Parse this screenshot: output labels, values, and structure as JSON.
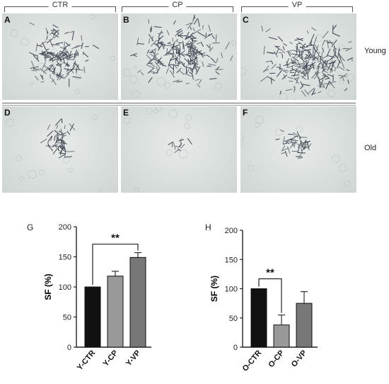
{
  "groups": [
    "CTR",
    "CP",
    "VP"
  ],
  "panels_top": [
    "A",
    "B",
    "C"
  ],
  "panels_bottom": [
    "D",
    "E",
    "F"
  ],
  "rows": {
    "young": "Young",
    "old": "Old"
  },
  "fig_labels": {
    "g": "G",
    "h": "H"
  },
  "chart_data": [
    {
      "type": "bar",
      "categories": [
        "Y-CTR",
        "Y-CP",
        "Y-VP"
      ],
      "values": [
        100,
        118,
        149
      ],
      "errors": [
        0,
        8,
        8
      ],
      "colors": [
        "#111111",
        "#999999",
        "#777777"
      ],
      "ylabel": "SF (%)",
      "ylim": [
        0,
        200
      ],
      "yticks": [
        0,
        50,
        100,
        150,
        200
      ],
      "annotation": {
        "text": "**",
        "from": "Y-CTR",
        "to": "Y-VP"
      }
    },
    {
      "type": "bar",
      "categories": [
        "O-CTR",
        "O-CP",
        "O-VP"
      ],
      "values": [
        100,
        38,
        75
      ],
      "errors": [
        0,
        17,
        20
      ],
      "colors": [
        "#111111",
        "#999999",
        "#777777"
      ],
      "ylabel": "SF (%)",
      "ylim": [
        0,
        200
      ],
      "yticks": [
        0,
        50,
        100,
        150,
        200
      ],
      "annotation": {
        "text": "**",
        "from": "O-CTR",
        "to": "O-CP"
      }
    }
  ]
}
